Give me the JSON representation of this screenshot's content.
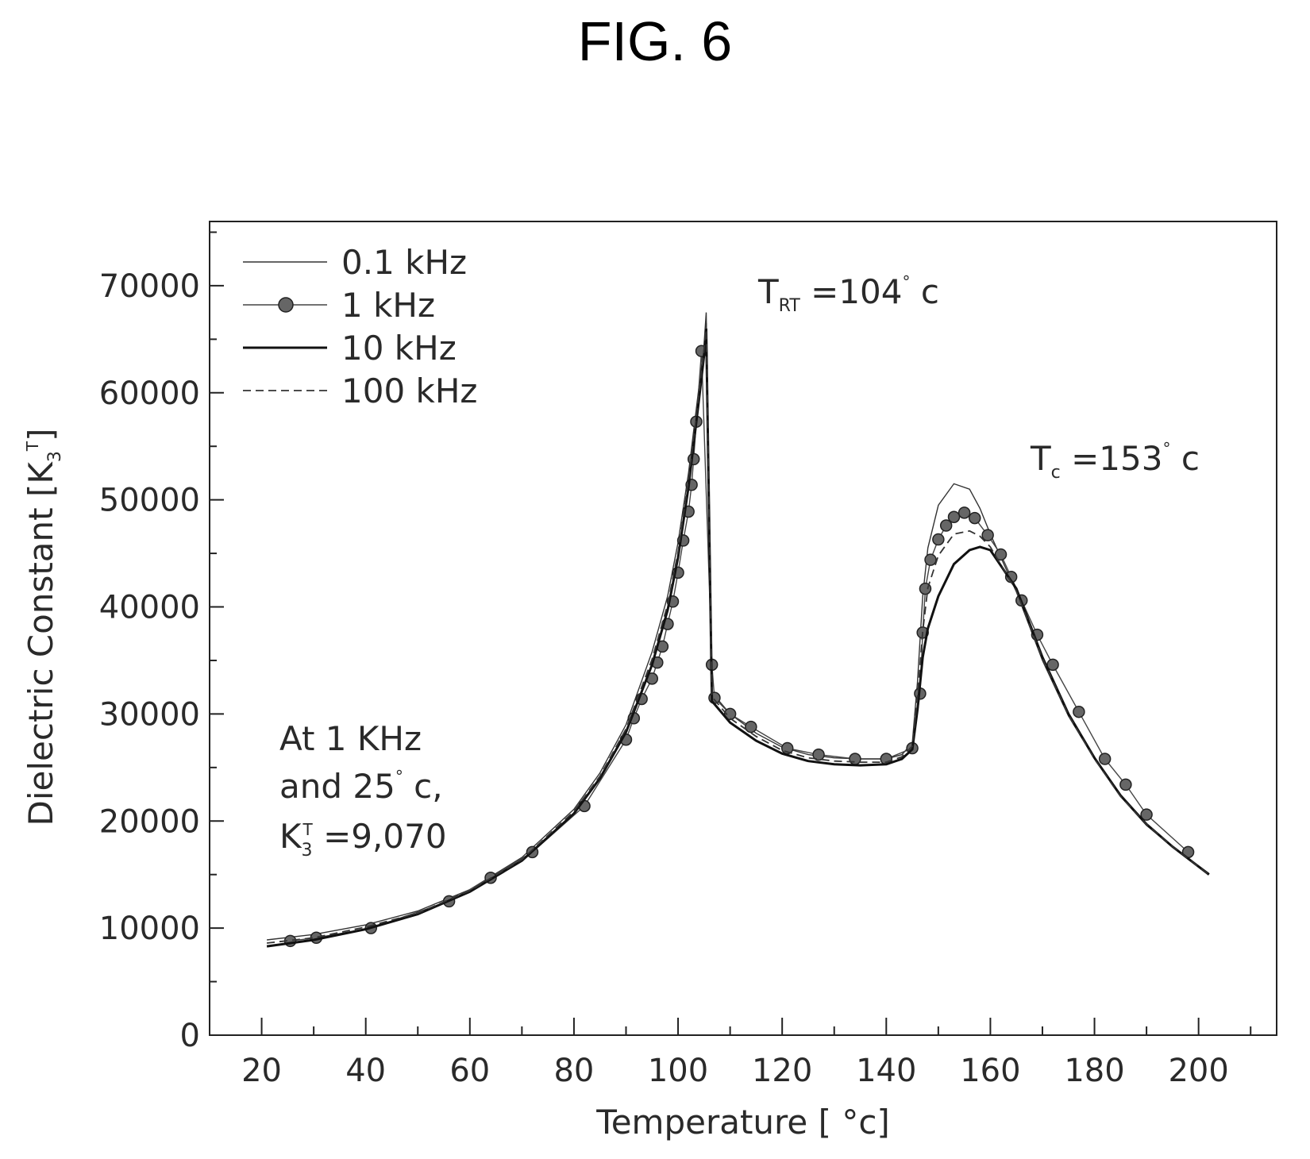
{
  "figure_title": "FIG. 6",
  "chart_data": {
    "type": "line",
    "xlabel": "Temperature [ °c]",
    "ylabel": "Dielectric Constant [K3T]",
    "xlim": [
      10,
      215
    ],
    "ylim": [
      0,
      76000
    ],
    "x_ticks": [
      20,
      40,
      60,
      80,
      100,
      120,
      140,
      160,
      180,
      200
    ],
    "y_ticks": [
      0,
      10000,
      20000,
      30000,
      40000,
      50000,
      60000,
      70000
    ],
    "x_tick_labels": [
      "20",
      "40",
      "60",
      "80",
      "100",
      "120",
      "140",
      "160",
      "180",
      "200"
    ],
    "y_tick_labels": [
      "0",
      "10000",
      "20000",
      "30000",
      "40000",
      "50000",
      "60000",
      "70000"
    ],
    "grid": false,
    "legend_position": "top-left",
    "series": [
      {
        "name": "0.1 kHz",
        "style": "thin",
        "x": [
          21,
          30,
          40,
          50,
          60,
          70,
          80,
          85,
          90,
          95,
          98,
          100,
          102,
          104,
          105,
          105.4,
          106.5,
          110,
          115,
          120,
          125,
          130,
          135,
          140,
          143,
          145,
          146,
          147,
          148,
          150,
          153,
          156,
          158,
          160,
          165,
          170,
          175,
          180,
          185,
          190,
          195,
          202
        ],
        "y": [
          8900,
          9400,
          10300,
          11600,
          13600,
          16600,
          21100,
          24500,
          29000,
          35800,
          41000,
          46000,
          52500,
          60500,
          64500,
          67500,
          32000,
          30000,
          28200,
          26900,
          26200,
          25900,
          25800,
          25800,
          26200,
          27300,
          33000,
          41000,
          45500,
          49500,
          51500,
          51000,
          49200,
          46800,
          41400,
          35000,
          29800,
          25800,
          22300,
          19600,
          17600,
          15100
        ]
      },
      {
        "name": "1 kHz",
        "style": "markers",
        "x": [
          25.5,
          30.5,
          41,
          56,
          64,
          72,
          82,
          90,
          91.5,
          93,
          95,
          96,
          97,
          98,
          99,
          100,
          101,
          102,
          102.6,
          103,
          103.5,
          104.5,
          106.5,
          107,
          110,
          114,
          121,
          127,
          134,
          140,
          145,
          146.5,
          147,
          147.5,
          148.5,
          150,
          151.5,
          153,
          155,
          157,
          159.5,
          162,
          164,
          166,
          169,
          172,
          177,
          182,
          186,
          190,
          198
        ],
        "y": [
          8800,
          9100,
          10000,
          12500,
          14700,
          17100,
          21400,
          27600,
          29600,
          31400,
          33300,
          34800,
          36300,
          38400,
          40500,
          43200,
          46200,
          48900,
          51400,
          53800,
          57300,
          63900,
          34600,
          31500,
          30000,
          28800,
          26800,
          26200,
          25800,
          25800,
          26800,
          31900,
          37600,
          41700,
          44400,
          46300,
          47600,
          48400,
          48800,
          48300,
          46700,
          44900,
          42800,
          40600,
          37400,
          34600,
          30200,
          25800,
          23400,
          20600,
          17100
        ]
      },
      {
        "name": "10 kHz",
        "style": "thick",
        "x": [
          21,
          30,
          40,
          50,
          60,
          70,
          80,
          85,
          90,
          95,
          98,
          100,
          102,
          104,
          105,
          105.4,
          106.5,
          110,
          115,
          120,
          125,
          130,
          135,
          140,
          143,
          145,
          146,
          147,
          148,
          150,
          153,
          156,
          158,
          160,
          165,
          170,
          175,
          180,
          185,
          190,
          195,
          202
        ],
        "y": [
          8300,
          8900,
          9900,
          11300,
          13400,
          16300,
          20700,
          24000,
          28300,
          34600,
          39700,
          44600,
          51200,
          59300,
          63500,
          66000,
          31200,
          29200,
          27500,
          26300,
          25600,
          25300,
          25200,
          25300,
          25800,
          26700,
          30400,
          35300,
          38000,
          41000,
          44000,
          45300,
          45600,
          45300,
          41700,
          35300,
          30000,
          25900,
          22400,
          19700,
          17600,
          15000
        ]
      },
      {
        "name": "100 kHz",
        "style": "dashed",
        "x": [
          21,
          30,
          40,
          50,
          60,
          70,
          80,
          85,
          90,
          95,
          98,
          100,
          102,
          104,
          105,
          105.4,
          106.5,
          110,
          115,
          120,
          125,
          130,
          135,
          140,
          143,
          145,
          146,
          147,
          148,
          150,
          153,
          156,
          158,
          160,
          165,
          170,
          175,
          180,
          185,
          190,
          195,
          202
        ],
        "y": [
          8600,
          9100,
          10100,
          11400,
          13500,
          16400,
          20900,
          24200,
          28600,
          35100,
          40200,
          45100,
          51800,
          59800,
          64000,
          66500,
          31600,
          29600,
          27900,
          26600,
          25900,
          25600,
          25500,
          25500,
          26000,
          27000,
          31600,
          37700,
          41800,
          44800,
          46800,
          47100,
          46600,
          45600,
          41500,
          35200,
          29900,
          25800,
          22300,
          19700,
          17600,
          15000
        ]
      }
    ],
    "annotations": {
      "trt": {
        "main": "T",
        "sub": "RT",
        "rest": " =104",
        "deg": "°",
        "unit": " c"
      },
      "tc": {
        "main": "T",
        "sub": "c",
        "rest": " =153",
        "deg": "°",
        "unit": " c"
      },
      "note_line1": "At 1 KHz",
      "note_line2_main": "and 25",
      "note_line2_deg": "°",
      "note_line2_unit": " c,",
      "note_line3_main": "K",
      "note_line3_sub": "3",
      "note_line3_sup": "T",
      "note_line3_rest": " =9,070"
    }
  }
}
